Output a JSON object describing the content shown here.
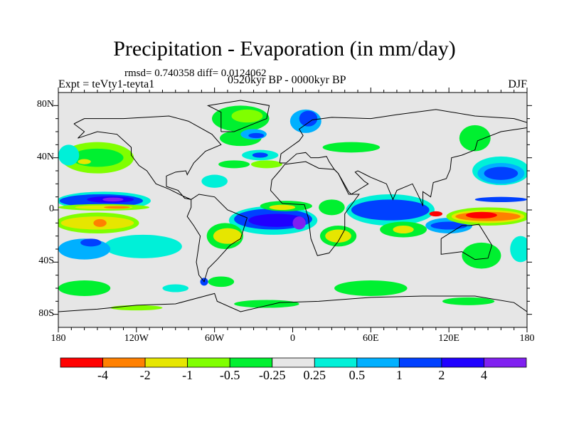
{
  "header": {
    "title": "Precipitation - Evaporation (in mm/day)",
    "stats": "rmsd= 0.740358 diff= 0.0124062",
    "experiment": "Expt = teVty1-tevta1",
    "period": "0520kyr BP - 0000kyr BP",
    "season": "DJF"
  },
  "chart_data": {
    "type": "heatmap",
    "title": "Precipitation - Evaporation (in mm/day)",
    "projection": "cylindrical equidistant",
    "xlim": [
      -180,
      180
    ],
    "ylim": [
      -90,
      90
    ],
    "lat_ticks": [
      {
        "v": 80,
        "label": "80N"
      },
      {
        "v": 40,
        "label": "40N"
      },
      {
        "v": 0,
        "label": "0"
      },
      {
        "v": -40,
        "label": "40S"
      },
      {
        "v": -80,
        "label": "80S"
      }
    ],
    "lon_ticks": [
      {
        "v": -180,
        "label": "180"
      },
      {
        "v": -120,
        "label": "120W"
      },
      {
        "v": -60,
        "label": "60W"
      },
      {
        "v": 0,
        "label": "0"
      },
      {
        "v": 60,
        "label": "60E"
      },
      {
        "v": 120,
        "label": "120E"
      },
      {
        "v": 180,
        "label": "180"
      }
    ],
    "colorbar": {
      "labels": [
        "-4",
        "-2",
        "-1",
        "-0.5",
        "-0.25",
        "0.25",
        "0.5",
        "1",
        "2",
        "4"
      ],
      "colors": [
        "#ff0000",
        "#ff8000",
        "#e6e600",
        "#80ff00",
        "#00f030",
        "#e6e6e6",
        "#00f0d8",
        "#00b0ff",
        "#0040ff",
        "#2000ff",
        "#8020f0"
      ]
    },
    "field_patches": [
      {
        "lon": -150,
        "lat": 40,
        "rlon": 28,
        "rlat": 12,
        "level": 3
      },
      {
        "lon": -150,
        "lat": 40,
        "rlon": 20,
        "rlat": 7,
        "level": 4
      },
      {
        "lon": -160,
        "lat": 37,
        "rlon": 5,
        "rlat": 2,
        "level": 2
      },
      {
        "lon": -172,
        "lat": 42,
        "rlon": 8,
        "rlat": 8,
        "level": 6
      },
      {
        "lon": -145,
        "lat": 7,
        "rlon": 36,
        "rlat": 7,
        "level": 6
      },
      {
        "lon": -147,
        "lat": 7,
        "rlon": 32,
        "rlat": 5,
        "level": 8
      },
      {
        "lon": -140,
        "lat": 8,
        "rlon": 18,
        "rlat": 2.5,
        "level": 9
      },
      {
        "lon": -138,
        "lat": 8,
        "rlon": 8,
        "rlat": 1.5,
        "level": 10
      },
      {
        "lon": -145,
        "lat": 2,
        "rlon": 35,
        "rlat": 2.5,
        "level": 3
      },
      {
        "lon": -145,
        "lat": 2,
        "rlon": 22,
        "rlat": 1.5,
        "level": 2
      },
      {
        "lon": -135,
        "lat": 2,
        "rlon": 10,
        "rlat": 1,
        "level": 1
      },
      {
        "lon": -150,
        "lat": -10,
        "rlon": 32,
        "rlat": 8,
        "level": 3
      },
      {
        "lon": -150,
        "lat": -10,
        "rlon": 28,
        "rlat": 5,
        "level": 2
      },
      {
        "lon": -148,
        "lat": -10,
        "rlon": 5,
        "rlat": 3,
        "level": 1
      },
      {
        "lon": -115,
        "lat": -28,
        "rlon": 30,
        "rlat": 9,
        "level": 6
      },
      {
        "lon": -160,
        "lat": -30,
        "rlon": 20,
        "rlat": 8,
        "level": 7
      },
      {
        "lon": -155,
        "lat": -25,
        "rlon": 8,
        "rlat": 3,
        "level": 8
      },
      {
        "lon": -160,
        "lat": -60,
        "rlon": 20,
        "rlat": 6,
        "level": 4
      },
      {
        "lon": -90,
        "lat": -60,
        "rlon": 10,
        "rlat": 3,
        "level": 6
      },
      {
        "lon": -40,
        "lat": 70,
        "rlon": 22,
        "rlat": 10,
        "level": 4
      },
      {
        "lon": -35,
        "lat": 72,
        "rlon": 12,
        "rlat": 5,
        "level": 3
      },
      {
        "lon": -40,
        "lat": 55,
        "rlon": 16,
        "rlat": 6,
        "level": 4
      },
      {
        "lon": -30,
        "lat": 58,
        "rlon": 10,
        "rlat": 4,
        "level": 7
      },
      {
        "lon": -28,
        "lat": 57,
        "rlon": 6,
        "rlat": 2,
        "level": 8
      },
      {
        "lon": -25,
        "lat": 42,
        "rlon": 14,
        "rlat": 4,
        "level": 6
      },
      {
        "lon": -25,
        "lat": 42,
        "rlon": 6,
        "rlat": 2,
        "level": 8
      },
      {
        "lon": -45,
        "lat": 35,
        "rlon": 12,
        "rlat": 3,
        "level": 4
      },
      {
        "lon": -20,
        "lat": 35,
        "rlon": 12,
        "rlat": 3,
        "level": 3
      },
      {
        "lon": -60,
        "lat": 22,
        "rlon": 10,
        "rlat": 5,
        "level": 6
      },
      {
        "lon": 10,
        "lat": 68,
        "rlon": 12,
        "rlat": 9,
        "level": 7
      },
      {
        "lon": 12,
        "lat": 70,
        "rlon": 7,
        "rlat": 6,
        "level": 8
      },
      {
        "lon": 45,
        "lat": 48,
        "rlon": 22,
        "rlat": 4,
        "level": 4
      },
      {
        "lon": -15,
        "lat": -8,
        "rlon": 34,
        "rlat": 11,
        "level": 6
      },
      {
        "lon": -15,
        "lat": -7,
        "rlon": 30,
        "rlat": 8,
        "level": 8
      },
      {
        "lon": -12,
        "lat": -8,
        "rlon": 22,
        "rlat": 5,
        "level": 9
      },
      {
        "lon": 5,
        "lat": -10,
        "rlon": 5,
        "rlat": 5,
        "level": 10
      },
      {
        "lon": -5,
        "lat": 3,
        "rlon": 20,
        "rlat": 4,
        "level": 4
      },
      {
        "lon": -8,
        "lat": 2,
        "rlon": 10,
        "rlat": 2,
        "level": 2
      },
      {
        "lon": -52,
        "lat": -20,
        "rlon": 14,
        "rlat": 10,
        "level": 4
      },
      {
        "lon": -50,
        "lat": -20,
        "rlon": 11,
        "rlat": 6,
        "level": 2
      },
      {
        "lon": -55,
        "lat": -55,
        "rlon": 10,
        "rlat": 4,
        "level": 4
      },
      {
        "lon": -68,
        "lat": -55,
        "rlon": 3,
        "rlat": 3,
        "level": 8
      },
      {
        "lon": 35,
        "lat": -20,
        "rlon": 14,
        "rlat": 8,
        "level": 4
      },
      {
        "lon": 35,
        "lat": -20,
        "rlon": 10,
        "rlat": 5,
        "level": 2
      },
      {
        "lon": 30,
        "lat": 2,
        "rlon": 10,
        "rlat": 6,
        "level": 4
      },
      {
        "lon": 75,
        "lat": 0,
        "rlon": 34,
        "rlat": 12,
        "level": 6
      },
      {
        "lon": 75,
        "lat": 0,
        "rlon": 30,
        "rlat": 8,
        "level": 8
      },
      {
        "lon": 85,
        "lat": -15,
        "rlon": 18,
        "rlat": 6,
        "level": 4
      },
      {
        "lon": 85,
        "lat": -15,
        "rlon": 8,
        "rlat": 3,
        "level": 2
      },
      {
        "lon": 60,
        "lat": -60,
        "rlon": 28,
        "rlat": 6,
        "level": 4
      },
      {
        "lon": 120,
        "lat": -12,
        "rlon": 18,
        "rlat": 6,
        "level": 7
      },
      {
        "lon": 120,
        "lat": -12,
        "rlon": 14,
        "rlat": 3,
        "level": 8
      },
      {
        "lon": 150,
        "lat": -5,
        "rlon": 32,
        "rlat": 7,
        "level": 3
      },
      {
        "lon": 150,
        "lat": -5,
        "rlon": 28,
        "rlat": 5,
        "level": 2
      },
      {
        "lon": 150,
        "lat": -5,
        "rlon": 25,
        "rlat": 3.5,
        "level": 1
      },
      {
        "lon": 145,
        "lat": -4,
        "rlon": 12,
        "rlat": 2.5,
        "level": 0
      },
      {
        "lon": 110,
        "lat": -3,
        "rlon": 5,
        "rlat": 2,
        "level": 0
      },
      {
        "lon": 160,
        "lat": 30,
        "rlon": 22,
        "rlat": 11,
        "level": 6
      },
      {
        "lon": 160,
        "lat": 28,
        "rlon": 18,
        "rlat": 8,
        "level": 7
      },
      {
        "lon": 160,
        "lat": 28,
        "rlon": 13,
        "rlat": 5,
        "level": 8
      },
      {
        "lon": 160,
        "lat": 8,
        "rlon": 20,
        "rlat": 2,
        "level": 8
      },
      {
        "lon": 145,
        "lat": -35,
        "rlon": 15,
        "rlat": 10,
        "level": 4
      },
      {
        "lon": 175,
        "lat": -30,
        "rlon": 8,
        "rlat": 10,
        "level": 6
      },
      {
        "lon": 140,
        "lat": 55,
        "rlon": 12,
        "rlat": 10,
        "level": 4
      },
      {
        "lon": 135,
        "lat": -70,
        "rlon": 20,
        "rlat": 3,
        "level": 4
      },
      {
        "lon": -20,
        "lat": -72,
        "rlon": 25,
        "rlat": 3,
        "level": 4
      },
      {
        "lon": -120,
        "lat": -75,
        "rlon": 20,
        "rlat": 2,
        "level": 3
      }
    ]
  }
}
